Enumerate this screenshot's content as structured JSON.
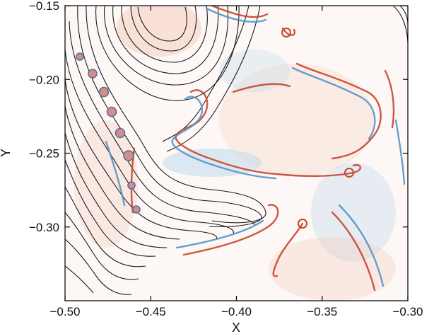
{
  "chart_data": {
    "type": "heatmap",
    "title": "",
    "xlabel": "X",
    "ylabel": "Y",
    "xlim": [
      -0.5,
      -0.3
    ],
    "ylim": [
      -0.35,
      -0.15
    ],
    "x_ticks": [
      -0.5,
      -0.45,
      -0.4,
      -0.35,
      -0.3
    ],
    "y_ticks": [
      -0.3,
      -0.25,
      -0.2,
      -0.15
    ],
    "x_tick_labels": [
      "−0.50",
      "−0.45",
      "−0.40",
      "−0.35",
      "−0.30"
    ],
    "y_tick_labels": [
      "−0.30",
      "−0.25",
      "−0.20",
      "−0.15"
    ],
    "colormap": {
      "negative": "#4a8fc4",
      "zero": "#ffffff",
      "positive": "#c8452e"
    },
    "contour_color": "#1a1a1a",
    "contour_centers": [
      {
        "x": -0.462,
        "y": -0.165
      },
      {
        "x": -0.5,
        "y": -0.262
      }
    ],
    "grid": false,
    "legend": "none"
  }
}
